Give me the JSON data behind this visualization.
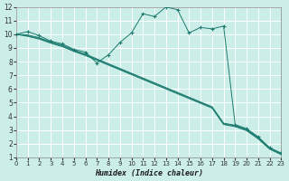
{
  "xlabel": "Humidex (Indice chaleur)",
  "bg_color": "#cceee8",
  "grid_color": "#aaddcc",
  "line_color": "#1a7a6e",
  "xlim": [
    0,
    23
  ],
  "ylim": [
    1,
    12
  ],
  "xticks": [
    0,
    1,
    2,
    3,
    4,
    5,
    6,
    7,
    8,
    9,
    10,
    11,
    12,
    13,
    14,
    15,
    16,
    17,
    18,
    19,
    20,
    21,
    22,
    23
  ],
  "yticks": [
    1,
    2,
    3,
    4,
    5,
    6,
    7,
    8,
    9,
    10,
    11,
    12
  ],
  "zigzag_x": [
    0,
    1,
    2,
    3,
    4,
    5,
    6,
    7,
    8,
    9,
    10,
    11,
    12,
    13,
    14,
    15,
    16,
    17,
    18,
    19,
    20,
    21,
    22,
    23
  ],
  "zigzag_y": [
    10.0,
    10.2,
    9.9,
    9.5,
    9.3,
    8.9,
    8.7,
    7.9,
    8.5,
    9.4,
    10.1,
    11.5,
    11.3,
    12.0,
    11.8,
    10.1,
    10.5,
    10.4,
    10.6,
    3.4,
    3.1,
    2.5,
    1.7,
    1.3
  ],
  "diag1_x": [
    0,
    1,
    2,
    3,
    4,
    5,
    6,
    7,
    8,
    9,
    10,
    11,
    12,
    13,
    14,
    15,
    16,
    17,
    18,
    19,
    20,
    21,
    22,
    23
  ],
  "diag1_y": [
    10.0,
    9.95,
    9.75,
    9.45,
    9.2,
    8.85,
    8.55,
    8.2,
    7.85,
    7.5,
    7.15,
    6.8,
    6.45,
    6.1,
    5.75,
    5.4,
    5.05,
    4.7,
    3.5,
    3.35,
    3.05,
    2.45,
    1.7,
    1.3
  ],
  "diag2_x": [
    0,
    1,
    2,
    3,
    4,
    5,
    6,
    7,
    8,
    9,
    10,
    11,
    12,
    13,
    14,
    15,
    16,
    17,
    18,
    19,
    20,
    21,
    22,
    23
  ],
  "diag2_y": [
    10.0,
    9.9,
    9.7,
    9.4,
    9.15,
    8.8,
    8.5,
    8.15,
    7.8,
    7.45,
    7.1,
    6.75,
    6.4,
    6.05,
    5.7,
    5.35,
    5.0,
    4.65,
    3.45,
    3.3,
    3.0,
    2.4,
    1.65,
    1.25
  ],
  "diag3_x": [
    0,
    1,
    2,
    3,
    4,
    5,
    6,
    7,
    8,
    9,
    10,
    11,
    12,
    13,
    14,
    15,
    16,
    17,
    18,
    19,
    20,
    21,
    22,
    23
  ],
  "diag3_y": [
    10.0,
    9.85,
    9.65,
    9.35,
    9.1,
    8.75,
    8.45,
    8.1,
    7.75,
    7.4,
    7.05,
    6.7,
    6.35,
    6.0,
    5.65,
    5.3,
    4.95,
    4.6,
    3.4,
    3.25,
    2.95,
    2.35,
    1.6,
    1.2
  ]
}
